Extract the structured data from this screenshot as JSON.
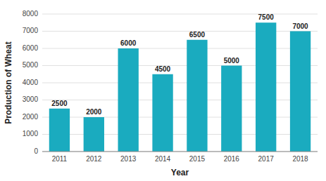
{
  "chart_data": {
    "type": "bar",
    "categories": [
      "2011",
      "2012",
      "2013",
      "2014",
      "2015",
      "2016",
      "2017",
      "2018"
    ],
    "values": [
      2500,
      2000,
      6000,
      4500,
      6500,
      5000,
      7500,
      7000
    ],
    "color": "#1aabbf",
    "xlabel": "Year",
    "ylabel": "Production of Wheat",
    "ylim": [
      0,
      8000
    ],
    "yticks": [
      0,
      1000,
      2000,
      3000,
      4000,
      5000,
      6000,
      7000,
      8000
    ],
    "grid": true,
    "data_labels": true
  }
}
